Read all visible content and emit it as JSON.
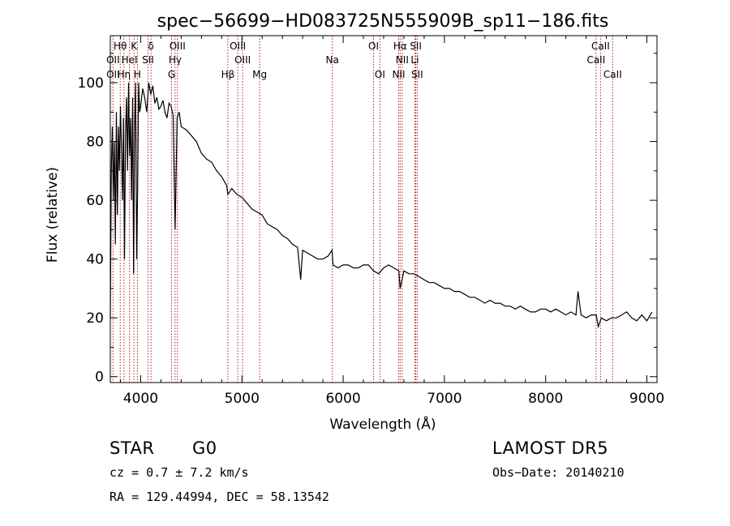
{
  "chart_data": {
    "type": "line",
    "title": "spec−56699−HD083725N555909B_sp11−186.fits",
    "xlabel": "Wavelength (Å)",
    "ylabel": "Flux (relative)",
    "xlim": [
      3700,
      9100
    ],
    "ylim": [
      -2,
      116
    ],
    "xticks": [
      4000,
      5000,
      6000,
      7000,
      8000,
      9000
    ],
    "yticks": [
      0,
      20,
      40,
      60,
      80,
      100
    ],
    "grid": false,
    "series": [
      {
        "x": [
          3700,
          3710,
          3720,
          3730,
          3740,
          3750,
          3760,
          3770,
          3780,
          3790,
          3800,
          3810,
          3820,
          3830,
          3840,
          3850,
          3860,
          3870,
          3880,
          3890,
          3900,
          3910,
          3920,
          3930,
          3940,
          3950,
          3960,
          3970,
          3980,
          3990,
          4000,
          4020,
          4040,
          4060,
          4080,
          4100,
          4120,
          4140,
          4160,
          4180,
          4200,
          4220,
          4240,
          4260,
          4280,
          4300,
          4320,
          4340,
          4360,
          4380,
          4400,
          4450,
          4500,
          4550,
          4600,
          4650,
          4700,
          4750,
          4800,
          4850,
          4861,
          4900,
          4950,
          5000,
          5050,
          5100,
          5150,
          5200,
          5250,
          5300,
          5350,
          5400,
          5450,
          5500,
          5550,
          5580,
          5600,
          5650,
          5700,
          5750,
          5800,
          5850,
          5890,
          5900,
          5950,
          6000,
          6050,
          6100,
          6150,
          6200,
          6250,
          6300,
          6350,
          6400,
          6450,
          6500,
          6550,
          6563,
          6600,
          6650,
          6700,
          6750,
          6800,
          6850,
          6900,
          6950,
          7000,
          7050,
          7100,
          7150,
          7200,
          7250,
          7300,
          7350,
          7400,
          7450,
          7500,
          7550,
          7600,
          7650,
          7700,
          7750,
          7800,
          7850,
          7900,
          7950,
          8000,
          8050,
          8100,
          8150,
          8200,
          8250,
          8300,
          8320,
          8350,
          8400,
          8450,
          8500,
          8520,
          8550,
          8600,
          8650,
          8700,
          8750,
          8800,
          8850,
          8900,
          8950,
          9000,
          9050
        ],
        "y": [
          20,
          70,
          85,
          60,
          80,
          45,
          90,
          55,
          85,
          70,
          92,
          78,
          60,
          88,
          40,
          82,
          95,
          70,
          100,
          75,
          88,
          60,
          95,
          35,
          85,
          100,
          40,
          65,
          100,
          90,
          92,
          98,
          95,
          90,
          100,
          96,
          99,
          93,
          95,
          91,
          92,
          94,
          90,
          88,
          93,
          92,
          89,
          50,
          88,
          90,
          85,
          84,
          82,
          80,
          76,
          74,
          73,
          70,
          68,
          65,
          62,
          64,
          62,
          61,
          59,
          57,
          56,
          55,
          52,
          51,
          50,
          48,
          47,
          45,
          44,
          33,
          43,
          42,
          41,
          40,
          40,
          41,
          43,
          38,
          37,
          38,
          38,
          37,
          37,
          38,
          38,
          36,
          35,
          37,
          38,
          37,
          36,
          30,
          36,
          35,
          35,
          34,
          33,
          32,
          32,
          31,
          30,
          30,
          29,
          29,
          28,
          27,
          27,
          26,
          25,
          26,
          25,
          25,
          24,
          24,
          23,
          24,
          23,
          22,
          22,
          23,
          23,
          22,
          23,
          22,
          21,
          22,
          21,
          29,
          21,
          20,
          21,
          21,
          17,
          20,
          19,
          20,
          20,
          21,
          22,
          20,
          19,
          21,
          19,
          22
        ]
      }
    ],
    "line_markers": [
      {
        "label": "Hθ",
        "x": 3798,
        "row": 0
      },
      {
        "label": "K",
        "x": 3934,
        "row": 0
      },
      {
        "label": "δ",
        "x": 4102,
        "row": 0
      },
      {
        "label": "OIII",
        "x": 4363,
        "row": 0
      },
      {
        "label": "OIII",
        "x": 4959,
        "row": 0
      },
      {
        "label": "OI",
        "x": 6300,
        "row": 0
      },
      {
        "label": "Hα",
        "x": 6563,
        "row": 0
      },
      {
        "label": "SII",
        "x": 6717,
        "row": 0
      },
      {
        "label": "CaII",
        "x": 8542,
        "row": 0
      },
      {
        "label": "OII",
        "x": 3727,
        "row": 1
      },
      {
        "label": "HeI",
        "x": 3889,
        "row": 1
      },
      {
        "label": "SII",
        "x": 4072,
        "row": 1
      },
      {
        "label": "Hγ",
        "x": 4340,
        "row": 1
      },
      {
        "label": "OIII",
        "x": 5007,
        "row": 1
      },
      {
        "label": "Na",
        "x": 5893,
        "row": 1
      },
      {
        "label": "NII",
        "x": 6583,
        "row": 1
      },
      {
        "label": "Li",
        "x": 6708,
        "row": 1
      },
      {
        "label": "CaII",
        "x": 8498,
        "row": 1
      },
      {
        "label": "OII",
        "x": 3727,
        "row": 2
      },
      {
        "label": "Hη",
        "x": 3835,
        "row": 2
      },
      {
        "label": "H",
        "x": 3968,
        "row": 2
      },
      {
        "label": "G",
        "x": 4305,
        "row": 2
      },
      {
        "label": "Hβ",
        "x": 4861,
        "row": 2
      },
      {
        "label": "Mg",
        "x": 5175,
        "row": 2
      },
      {
        "label": "OI",
        "x": 6363,
        "row": 2
      },
      {
        "label": "NII",
        "x": 6548,
        "row": 2
      },
      {
        "label": "SII",
        "x": 6731,
        "row": 2
      },
      {
        "label": "CaII",
        "x": 8662,
        "row": 2
      }
    ],
    "marker_lines_x": [
      3727,
      3798,
      3835,
      3889,
      3934,
      3968,
      4072,
      4102,
      4305,
      4340,
      4363,
      4861,
      4959,
      5007,
      5175,
      5893,
      6300,
      6363,
      6548,
      6563,
      6583,
      6708,
      6717,
      6731,
      8498,
      8542,
      8662
    ],
    "colors": {
      "spectrum": "#000000",
      "marker": "#b22222",
      "axis": "#000000"
    }
  },
  "footer": {
    "object_class": "STAR",
    "subclass": "G0",
    "survey": "LAMOST DR5",
    "cz": "cz = 0.7 ± 7.2 km/s",
    "obs_date": "Obs−Date: 20140210",
    "coords": "RA = 129.44994, DEC =  58.13542"
  }
}
